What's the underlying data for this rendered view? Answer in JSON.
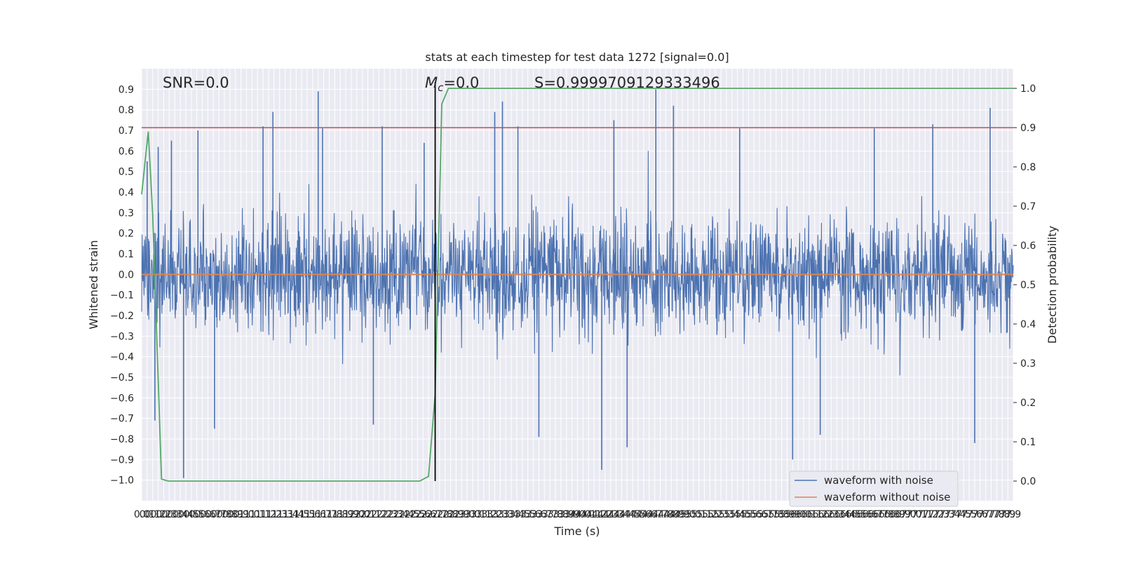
{
  "chart_data": {
    "type": "line",
    "title": "stats at each timestep for test data 1272 [signal=0.0]",
    "xlabel": "Time (s)",
    "ylabel": "Whitened strain",
    "y2label": "Detection probability",
    "xlim": [
      0.0,
      7.9
    ],
    "ylim": [
      -1.1,
      1.0
    ],
    "y2lim": [
      -0.05,
      1.05
    ],
    "x_tick_step": 0.05,
    "y_ticks": [
      -1.0,
      -0.9,
      -0.8,
      -0.7,
      -0.6,
      -0.5,
      -0.4,
      -0.3,
      -0.2,
      -0.1,
      0.0,
      0.1,
      0.2,
      0.3,
      0.4,
      0.5,
      0.6,
      0.7,
      0.8,
      0.9
    ],
    "y2_ticks": [
      0.0,
      0.1,
      0.2,
      0.3,
      0.4,
      0.5,
      0.6,
      0.7,
      0.8,
      0.9,
      1.0
    ],
    "grid": true,
    "legend_position": "lower-right",
    "annotations": {
      "snr": "SNR=0.0",
      "mc_symbol": "M",
      "mc_subscript": "c",
      "mc_value": "=0.0",
      "s": "S=0.9999709129333496"
    },
    "marker_line_x": 2.66,
    "threshold_y2": 0.9,
    "series": [
      {
        "name": "waveform with noise",
        "color": "#4c72b0",
        "kind": "noise",
        "mean": 0.0,
        "typical_range": [
          -0.4,
          0.45
        ],
        "spikes": [
          {
            "x": 0.05,
            "y": 0.55
          },
          {
            "x": 0.12,
            "y": -0.71
          },
          {
            "x": 0.15,
            "y": 0.62
          },
          {
            "x": 0.27,
            "y": 0.65
          },
          {
            "x": 0.38,
            "y": -0.99
          },
          {
            "x": 0.51,
            "y": 0.7
          },
          {
            "x": 0.66,
            "y": -0.75
          },
          {
            "x": 1.1,
            "y": 0.72
          },
          {
            "x": 1.19,
            "y": 0.79
          },
          {
            "x": 1.6,
            "y": 0.89
          },
          {
            "x": 1.64,
            "y": 0.71
          },
          {
            "x": 2.1,
            "y": -0.73
          },
          {
            "x": 2.18,
            "y": 0.72
          },
          {
            "x": 2.56,
            "y": 0.64
          },
          {
            "x": 3.2,
            "y": 0.79
          },
          {
            "x": 3.27,
            "y": 0.84
          },
          {
            "x": 3.41,
            "y": 0.72
          },
          {
            "x": 3.6,
            "y": -0.79
          },
          {
            "x": 4.17,
            "y": -0.95
          },
          {
            "x": 4.28,
            "y": 0.75
          },
          {
            "x": 4.4,
            "y": -0.84
          },
          {
            "x": 4.66,
            "y": 0.9
          },
          {
            "x": 4.82,
            "y": 0.82
          },
          {
            "x": 5.42,
            "y": 0.71
          },
          {
            "x": 5.9,
            "y": -0.9
          },
          {
            "x": 6.15,
            "y": -0.78
          },
          {
            "x": 6.64,
            "y": 0.71
          },
          {
            "x": 7.17,
            "y": 0.73
          },
          {
            "x": 7.55,
            "y": -0.82
          },
          {
            "x": 7.69,
            "y": 0.81
          }
        ]
      },
      {
        "name": "waveform without noise",
        "color": "#dd8452",
        "kind": "line",
        "x": [
          0.0,
          7.9
        ],
        "y": [
          0.0,
          0.0
        ]
      },
      {
        "name": "",
        "color": "#55a868",
        "kind": "line",
        "axis": "y2",
        "x": [
          0.0,
          0.06,
          0.1,
          0.18,
          0.24,
          2.52,
          2.6,
          2.66,
          2.72,
          2.78,
          7.9
        ],
        "y": [
          0.73,
          0.89,
          0.68,
          0.005,
          0.0,
          0.0,
          0.012,
          0.22,
          0.96,
          1.0,
          1.0
        ]
      }
    ]
  }
}
